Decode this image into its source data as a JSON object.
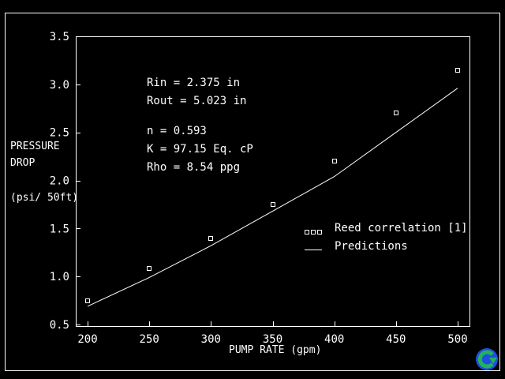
{
  "chart_data": {
    "type": "line",
    "title": "",
    "xlabel": "PUMP RATE (gpm)",
    "ylabel_lines": [
      "PRESSURE",
      "DROP",
      "(psi/ 50ft)"
    ],
    "xlim": [
      190,
      500
    ],
    "ylim": [
      0.5,
      3.5
    ],
    "xticks": [
      200,
      250,
      300,
      350,
      400,
      450,
      500
    ],
    "yticks": [
      0.5,
      1.0,
      1.5,
      2.0,
      2.5,
      3.0,
      3.5
    ],
    "xtick_labels": [
      "200",
      "250",
      "300",
      "350",
      "400",
      "450",
      "500"
    ],
    "ytick_labels": [
      "0.5",
      "1.0",
      "1.5",
      "2.0",
      "2.5",
      "3.0",
      "3.5"
    ],
    "grid": false,
    "legend_position": "right",
    "series": [
      {
        "name": "Reed correlation [1]",
        "kind": "scatter",
        "marker": "square",
        "x": [
          200,
          250,
          300,
          350,
          400,
          450,
          500
        ],
        "y": [
          0.75,
          1.08,
          1.4,
          1.75,
          2.2,
          2.7,
          3.15
        ]
      },
      {
        "name": "Predictions",
        "kind": "line",
        "x": [
          200,
          250,
          300,
          350,
          400,
          450,
          500
        ],
        "y": [
          0.69,
          0.99,
          1.32,
          1.68,
          2.04,
          2.5,
          2.96
        ]
      }
    ],
    "annotations": [
      "Rin = 2.375 in",
      "Rout = 5.023 in",
      "n = 0.593",
      "K = 97.15 Eq. cP",
      "Rho = 8.54 ppg"
    ],
    "colors": {
      "background": "#000000",
      "foreground": "#ffffff"
    }
  },
  "nav_icon": {
    "name": "refresh-arrow-icon",
    "color_outer": "#1f4fe0",
    "color_inner": "#22b35a"
  }
}
